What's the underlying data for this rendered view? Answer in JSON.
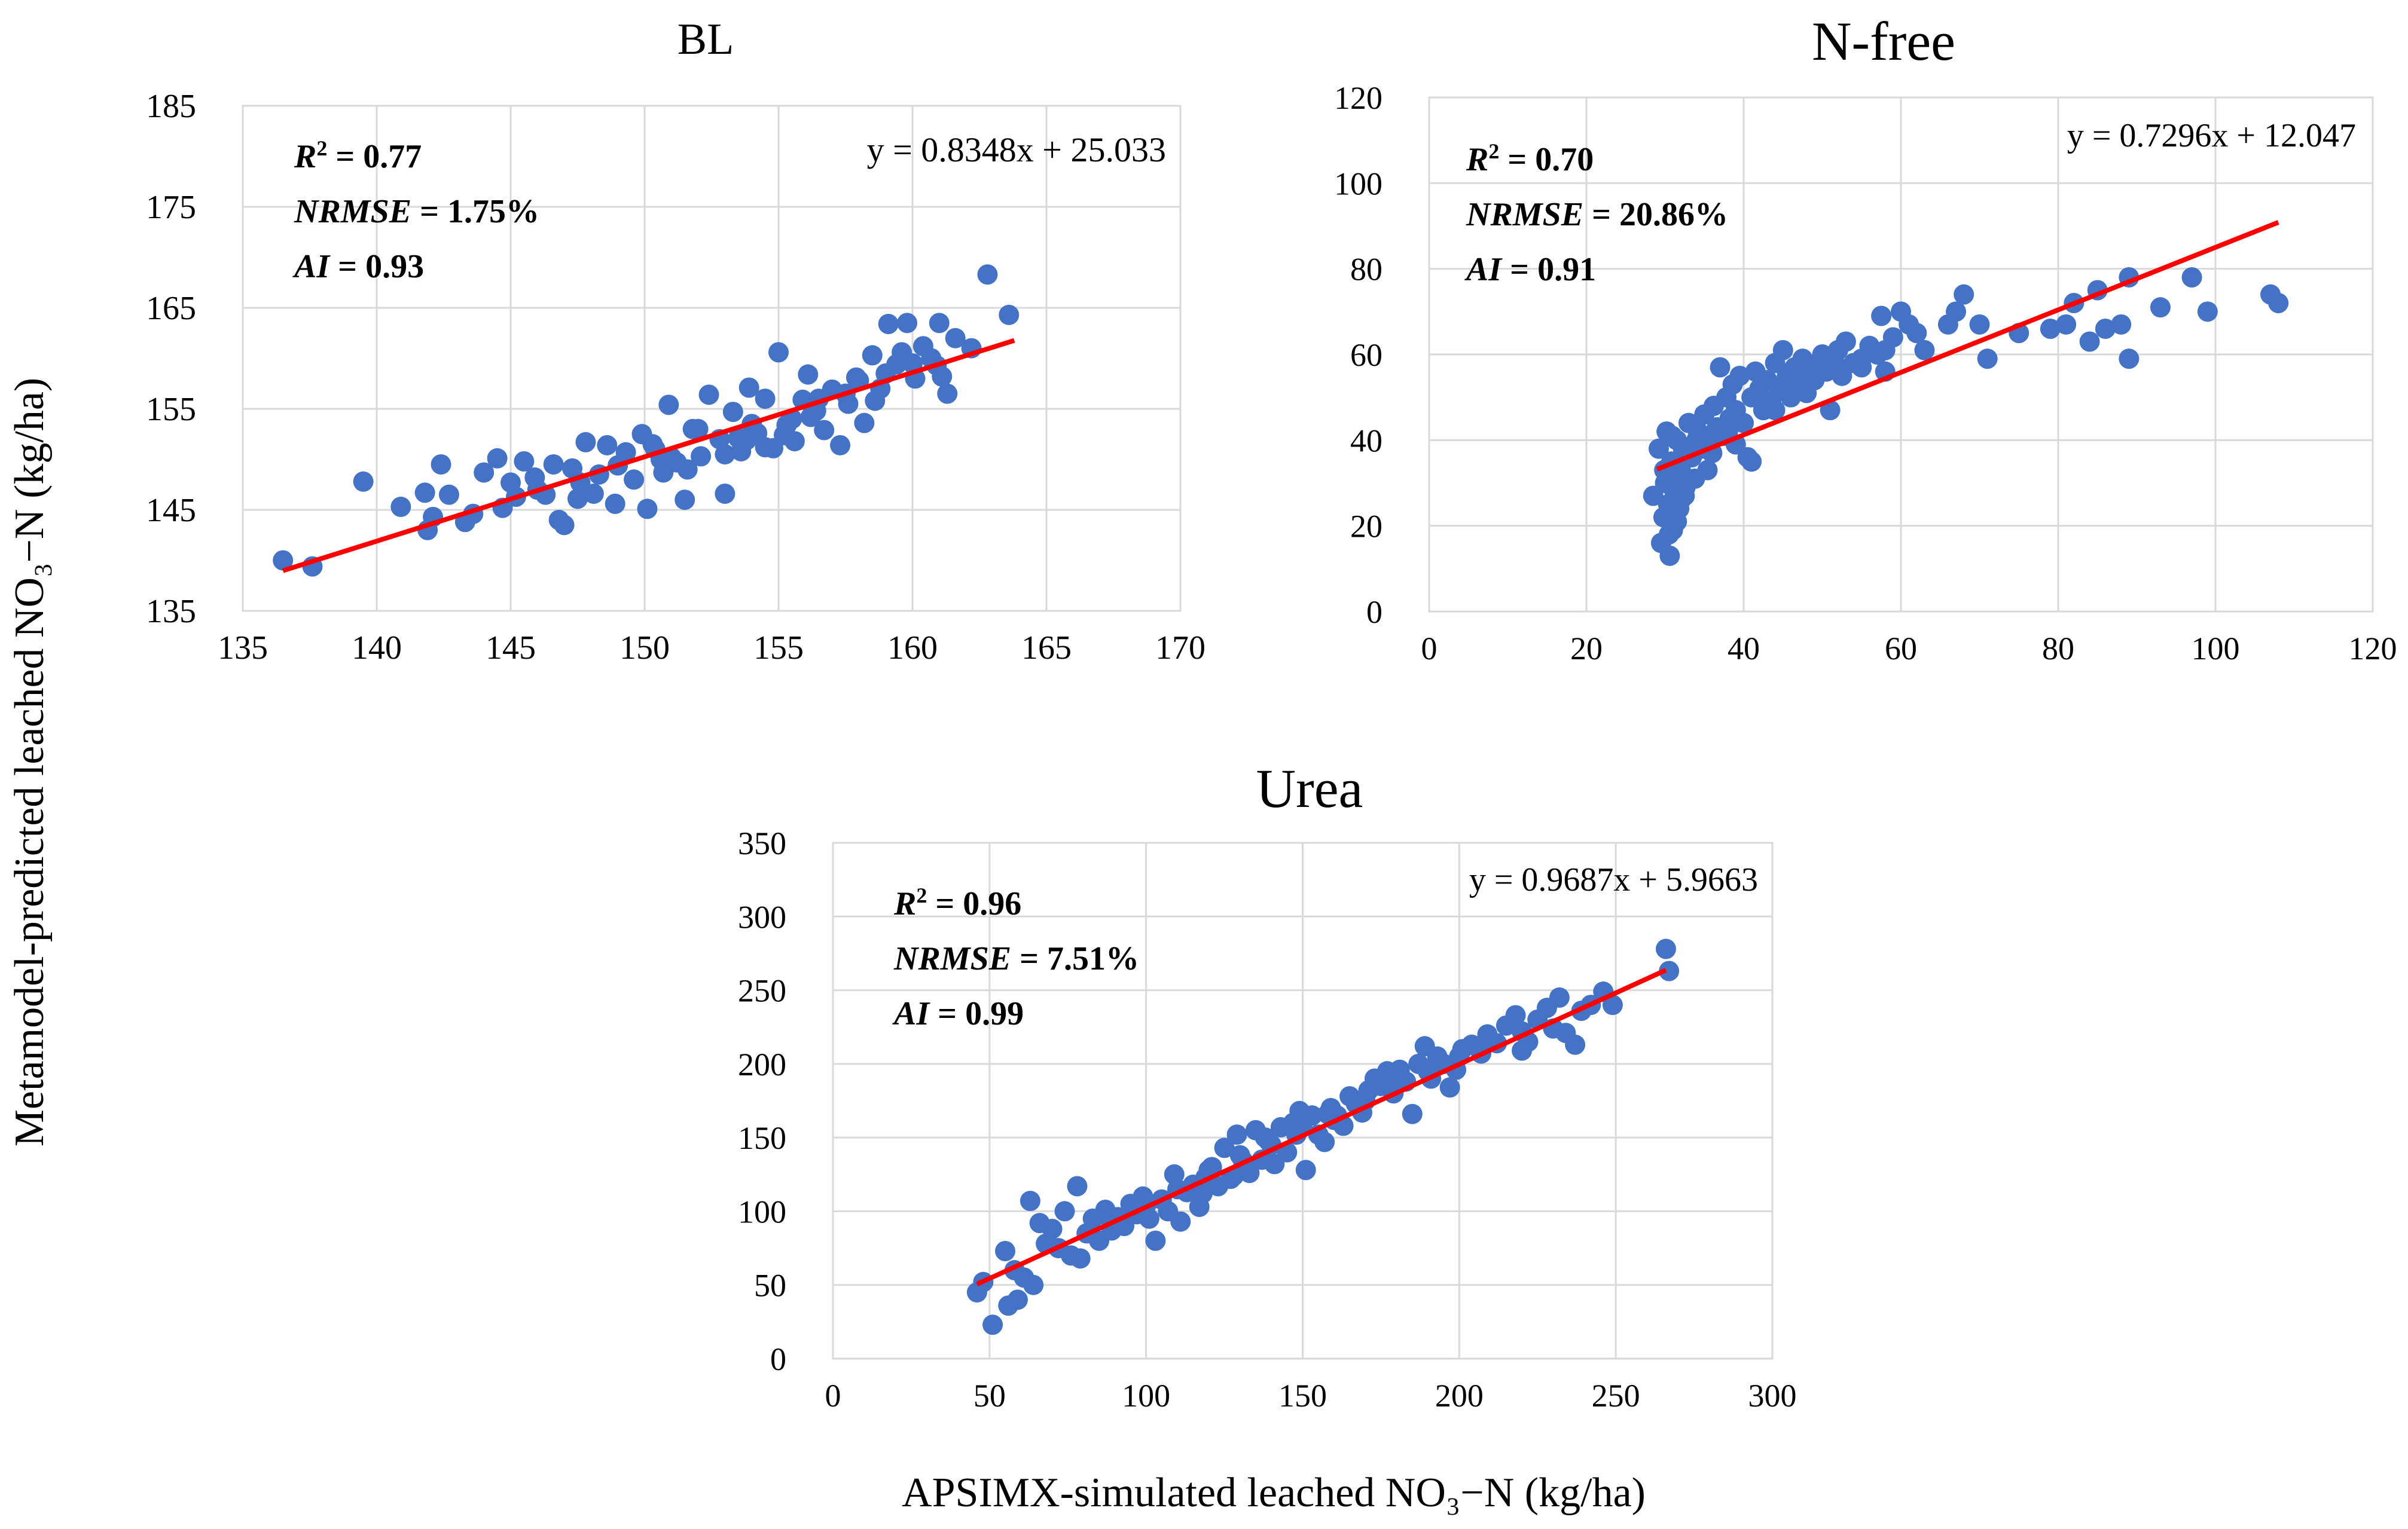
{
  "figure": {
    "y_axis_label": "Metamodel-predicted leached NO₃−N (kg/ha)",
    "x_axis_label": "APSIMX-simulated leached NO₃−N (kg/ha)"
  },
  "colors": {
    "points": "#4472C4",
    "trendline": "#FF0000",
    "grid": "#D9D9D9",
    "frame": "#D9D9D9"
  },
  "chart_data": [
    {
      "id": "bl",
      "type": "scatter",
      "title": "BL",
      "xlim": [
        135,
        170
      ],
      "ylim": [
        135,
        185
      ],
      "xticks": [
        135,
        140,
        145,
        150,
        155,
        160,
        165,
        170
      ],
      "yticks": [
        135,
        145,
        155,
        165,
        175,
        185
      ],
      "equation": "y = 0.8348x + 25.033",
      "trend": {
        "slope": 0.8348,
        "intercept": 25.033,
        "x_range": [
          136.5,
          163.8
        ]
      },
      "stats": [
        {
          "name": "R",
          "sup": "2",
          "value": " = 0.77"
        },
        {
          "name": "NRMSE",
          "sup": "",
          "value": " = 1.75%"
        },
        {
          "name": "AI",
          "sup": "",
          "value": " = 0.93"
        }
      ],
      "points": [
        [
          136.5,
          140
        ],
        [
          137.6,
          139.4
        ],
        [
          139.5,
          147.8
        ],
        [
          140.9,
          145.3
        ],
        [
          141.8,
          146.7
        ],
        [
          141.9,
          143
        ],
        [
          142.1,
          144.3
        ],
        [
          142.4,
          149.5
        ],
        [
          142.7,
          146.5
        ],
        [
          143.3,
          143.8
        ],
        [
          143.6,
          144.6
        ],
        [
          144.0,
          148.7
        ],
        [
          144.5,
          150.1
        ],
        [
          144.7,
          145.2
        ],
        [
          145.0,
          147.7
        ],
        [
          145.5,
          149.8
        ],
        [
          145.9,
          148.2
        ],
        [
          146.3,
          146.5
        ],
        [
          146.6,
          149.5
        ],
        [
          146.8,
          144.0
        ],
        [
          147.0,
          143.5
        ],
        [
          147.3,
          149.1
        ],
        [
          147.8,
          151.7
        ],
        [
          148.1,
          146.6
        ],
        [
          148.6,
          151.4
        ],
        [
          148.9,
          145.6
        ],
        [
          149.3,
          150.7
        ],
        [
          149.6,
          148.0
        ],
        [
          149.9,
          152.5
        ],
        [
          150.1,
          145.1
        ],
        [
          150.4,
          151.0
        ],
        [
          150.7,
          148.7
        ],
        [
          150.9,
          155.4
        ],
        [
          151.2,
          149.7
        ],
        [
          151.5,
          146.0
        ],
        [
          151.8,
          153.0
        ],
        [
          152.1,
          150.3
        ],
        [
          152.4,
          156.4
        ],
        [
          152.8,
          152.0
        ],
        [
          153.0,
          146.6
        ],
        [
          153.3,
          154.7
        ],
        [
          153.6,
          150.8
        ],
        [
          153.9,
          157.1
        ],
        [
          154.2,
          152.6
        ],
        [
          154.5,
          156.0
        ],
        [
          154.8,
          151.1
        ],
        [
          155.0,
          160.6
        ],
        [
          155.3,
          153.4
        ],
        [
          155.6,
          151.8
        ],
        [
          155.9,
          155.9
        ],
        [
          156.1,
          158.4
        ],
        [
          156.4,
          154.8
        ],
        [
          156.7,
          152.9
        ],
        [
          157.0,
          156.9
        ],
        [
          157.3,
          151.4
        ],
        [
          157.6,
          155.5
        ],
        [
          157.9,
          158.1
        ],
        [
          158.2,
          153.6
        ],
        [
          158.5,
          160.3
        ],
        [
          158.8,
          157.0
        ],
        [
          159.1,
          163.4
        ],
        [
          159.4,
          159.4
        ],
        [
          159.8,
          163.5
        ],
        [
          160.1,
          158.0
        ],
        [
          160.4,
          161.2
        ],
        [
          160.7,
          160.0
        ],
        [
          161.0,
          163.5
        ],
        [
          161.3,
          156.5
        ],
        [
          161.6,
          162.0
        ],
        [
          162.2,
          161.0
        ],
        [
          162.8,
          168.3
        ],
        [
          163.6,
          164.3
        ],
        [
          150.3,
          151.5
        ],
        [
          151.0,
          150.2
        ],
        [
          153.5,
          152.1
        ],
        [
          154.0,
          153.5
        ],
        [
          155.5,
          154.0
        ],
        [
          156.5,
          156.0
        ],
        [
          157.5,
          156.5
        ],
        [
          158.0,
          157.8
        ],
        [
          159.0,
          158.5
        ],
        [
          160.0,
          159.5
        ],
        [
          152.0,
          153.0
        ],
        [
          153.0,
          150.5
        ],
        [
          154.5,
          151.2
        ],
        [
          146.0,
          147.0
        ],
        [
          145.2,
          146.3
        ],
        [
          147.6,
          147.7
        ],
        [
          149.0,
          149.4
        ],
        [
          150.6,
          150.0
        ],
        [
          151.6,
          149.0
        ],
        [
          153.8,
          151.9
        ],
        [
          155.2,
          152.4
        ],
        [
          156.2,
          154.2
        ],
        [
          158.6,
          155.8
        ],
        [
          159.6,
          160.6
        ],
        [
          160.9,
          159.3
        ],
        [
          161.1,
          158.2
        ],
        [
          147.5,
          146.1
        ],
        [
          148.3,
          148.5
        ]
      ]
    },
    {
      "id": "nfree",
      "type": "scatter",
      "title": "N-free",
      "xlim": [
        0,
        120
      ],
      "ylim": [
        0,
        120
      ],
      "xticks": [
        0,
        20,
        40,
        60,
        80,
        100,
        120
      ],
      "yticks": [
        0,
        20,
        40,
        60,
        80,
        100,
        120
      ],
      "equation": "y = 0.7296x + 12.047",
      "trend": {
        "slope": 0.7296,
        "intercept": 12.047,
        "x_range": [
          29,
          108
        ]
      },
      "stats": [
        {
          "name": "R",
          "sup": "2",
          "value": " = 0.70"
        },
        {
          "name": "NRMSE",
          "sup": "",
          "value": " = 20.86%"
        },
        {
          "name": "AI",
          "sup": "",
          "value": " = 0.91"
        }
      ],
      "points": [
        [
          28.5,
          27
        ],
        [
          29.2,
          38
        ],
        [
          29.5,
          16
        ],
        [
          29.8,
          22
        ],
        [
          30.0,
          30
        ],
        [
          30.2,
          42
        ],
        [
          30.4,
          25
        ],
        [
          30.6,
          13
        ],
        [
          30.8,
          35
        ],
        [
          31.0,
          19
        ],
        [
          31.2,
          28
        ],
        [
          31.5,
          40
        ],
        [
          31.8,
          24
        ],
        [
          32.0,
          33
        ],
        [
          32.3,
          38
        ],
        [
          32.6,
          29
        ],
        [
          33.0,
          44
        ],
        [
          33.4,
          36
        ],
        [
          33.8,
          31
        ],
        [
          34.2,
          42
        ],
        [
          34.6,
          38
        ],
        [
          35.0,
          46
        ],
        [
          35.4,
          33
        ],
        [
          35.8,
          40
        ],
        [
          36.2,
          48
        ],
        [
          36.6,
          43
        ],
        [
          37.0,
          57
        ],
        [
          37.4,
          41
        ],
        [
          37.8,
          50
        ],
        [
          38.2,
          45
        ],
        [
          38.6,
          53
        ],
        [
          39.0,
          47
        ],
        [
          39.5,
          55
        ],
        [
          40.0,
          44
        ],
        [
          40.5,
          36
        ],
        [
          41.0,
          50
        ],
        [
          41.5,
          56
        ],
        [
          42.0,
          52
        ],
        [
          42.5,
          47
        ],
        [
          43.0,
          54
        ],
        [
          43.5,
          49
        ],
        [
          44.0,
          58
        ],
        [
          44.5,
          52
        ],
        [
          45.0,
          61
        ],
        [
          45.5,
          55
        ],
        [
          46.0,
          50
        ],
        [
          46.5,
          57
        ],
        [
          47.0,
          53
        ],
        [
          47.5,
          59
        ],
        [
          48.0,
          51
        ],
        [
          48.5,
          56
        ],
        [
          49.0,
          54
        ],
        [
          49.5,
          58
        ],
        [
          50.0,
          60
        ],
        [
          50.5,
          56
        ],
        [
          51.0,
          47
        ],
        [
          51.5,
          59
        ],
        [
          52.0,
          61
        ],
        [
          52.5,
          55
        ],
        [
          53.0,
          63
        ],
        [
          54.0,
          58
        ],
        [
          55.0,
          57
        ],
        [
          56.0,
          62
        ],
        [
          57.0,
          60
        ],
        [
          57.5,
          69
        ],
        [
          58.0,
          56
        ],
        [
          59.0,
          64
        ],
        [
          60.0,
          70
        ],
        [
          61.0,
          67
        ],
        [
          62.0,
          65
        ],
        [
          63.0,
          61
        ],
        [
          66.0,
          67
        ],
        [
          67.0,
          70
        ],
        [
          68.0,
          74
        ],
        [
          70.0,
          67
        ],
        [
          71.0,
          59
        ],
        [
          75.0,
          65
        ],
        [
          79.0,
          66
        ],
        [
          81.0,
          67
        ],
        [
          82.0,
          72
        ],
        [
          84.0,
          63
        ],
        [
          85.0,
          75
        ],
        [
          86.0,
          66
        ],
        [
          88.0,
          67
        ],
        [
          89.0,
          78
        ],
        [
          89.0,
          59
        ],
        [
          93.0,
          71
        ],
        [
          97.0,
          78
        ],
        [
          99.0,
          70
        ],
        [
          107.0,
          74
        ],
        [
          108.0,
          72
        ],
        [
          31.0,
          31
        ],
        [
          32.0,
          26
        ],
        [
          33.0,
          36
        ],
        [
          34.0,
          40
        ],
        [
          36.0,
          37
        ],
        [
          38.0,
          42
        ],
        [
          39.0,
          39
        ],
        [
          41.0,
          35
        ],
        [
          44.0,
          47
        ],
        [
          46.0,
          53
        ],
        [
          48.0,
          57
        ],
        [
          52.0,
          57
        ],
        [
          55.0,
          59
        ],
        [
          58.0,
          61
        ],
        [
          30.5,
          18
        ],
        [
          31.5,
          21
        ],
        [
          32.5,
          27
        ],
        [
          29.9,
          33
        ],
        [
          30.9,
          41
        ]
      ]
    },
    {
      "id": "urea",
      "type": "scatter",
      "title": "Urea",
      "xlim": [
        0,
        300
      ],
      "ylim": [
        0,
        350
      ],
      "xticks": [
        0,
        50,
        100,
        150,
        200,
        250,
        300
      ],
      "yticks": [
        0,
        50,
        100,
        150,
        200,
        250,
        300,
        350
      ],
      "equation": "y = 0.9687x + 5.9663",
      "trend": {
        "slope": 0.9687,
        "intercept": 5.9663,
        "x_range": [
          46,
          266
        ]
      },
      "stats": [
        {
          "name": "R",
          "sup": "2",
          "value": " = 0.96"
        },
        {
          "name": "NRMSE",
          "sup": "",
          "value": " = 7.51%"
        },
        {
          "name": "AI",
          "sup": "",
          "value": " = 0.99"
        }
      ],
      "points": [
        [
          46,
          45
        ],
        [
          48,
          52
        ],
        [
          51,
          23
        ],
        [
          55,
          73
        ],
        [
          56,
          36
        ],
        [
          58,
          60
        ],
        [
          59,
          40
        ],
        [
          61,
          55
        ],
        [
          63,
          107
        ],
        [
          64,
          50
        ],
        [
          66,
          92
        ],
        [
          68,
          78
        ],
        [
          70,
          88
        ],
        [
          72,
          75
        ],
        [
          74,
          100
        ],
        [
          76,
          70
        ],
        [
          78,
          117
        ],
        [
          79,
          68
        ],
        [
          81,
          85
        ],
        [
          83,
          95
        ],
        [
          85,
          80
        ],
        [
          87,
          101
        ],
        [
          89,
          87
        ],
        [
          91,
          96
        ],
        [
          93,
          90
        ],
        [
          95,
          105
        ],
        [
          97,
          98
        ],
        [
          99,
          110
        ],
        [
          101,
          95
        ],
        [
          103,
          80
        ],
        [
          105,
          108
        ],
        [
          107,
          100
        ],
        [
          109,
          125
        ],
        [
          111,
          93
        ],
        [
          113,
          113
        ],
        [
          115,
          118
        ],
        [
          117,
          103
        ],
        [
          119,
          123
        ],
        [
          121,
          130
        ],
        [
          123,
          117
        ],
        [
          125,
          143
        ],
        [
          127,
          122
        ],
        [
          129,
          152
        ],
        [
          131,
          134
        ],
        [
          133,
          126
        ],
        [
          135,
          155
        ],
        [
          137,
          135
        ],
        [
          139,
          148
        ],
        [
          141,
          132
        ],
        [
          143,
          157
        ],
        [
          145,
          140
        ],
        [
          147,
          160
        ],
        [
          149,
          168
        ],
        [
          151,
          128
        ],
        [
          153,
          165
        ],
        [
          155,
          152
        ],
        [
          157,
          147
        ],
        [
          159,
          170
        ],
        [
          161,
          165
        ],
        [
          163,
          158
        ],
        [
          165,
          178
        ],
        [
          167,
          173
        ],
        [
          169,
          167
        ],
        [
          171,
          182
        ],
        [
          173,
          190
        ],
        [
          175,
          185
        ],
        [
          177,
          195
        ],
        [
          179,
          180
        ],
        [
          181,
          196
        ],
        [
          183,
          188
        ],
        [
          185,
          166
        ],
        [
          187,
          200
        ],
        [
          189,
          212
        ],
        [
          191,
          190
        ],
        [
          193,
          205
        ],
        [
          195,
          200
        ],
        [
          197,
          184
        ],
        [
          199,
          196
        ],
        [
          201,
          210
        ],
        [
          204,
          213
        ],
        [
          207,
          207
        ],
        [
          209,
          220
        ],
        [
          212,
          214
        ],
        [
          215,
          226
        ],
        [
          218,
          233
        ],
        [
          220,
          209
        ],
        [
          222,
          215
        ],
        [
          225,
          230
        ],
        [
          228,
          238
        ],
        [
          230,
          224
        ],
        [
          232,
          245
        ],
        [
          234,
          221
        ],
        [
          237,
          213
        ],
        [
          239,
          236
        ],
        [
          242,
          240
        ],
        [
          246,
          249
        ],
        [
          249,
          240
        ],
        [
          266,
          278
        ],
        [
          267,
          263
        ],
        [
          100,
          104
        ],
        [
          110,
          115
        ],
        [
          120,
          128
        ],
        [
          130,
          138
        ],
        [
          140,
          145
        ],
        [
          150,
          160
        ],
        [
          160,
          162
        ],
        [
          170,
          175
        ],
        [
          180,
          186
        ],
        [
          190,
          195
        ],
        [
          200,
          205
        ],
        [
          210,
          215
        ],
        [
          220,
          222
        ],
        [
          88,
          96
        ],
        [
          118,
          112
        ],
        [
          128,
          124
        ],
        [
          138,
          150
        ],
        [
          148,
          152
        ],
        [
          158,
          166
        ]
      ]
    }
  ]
}
